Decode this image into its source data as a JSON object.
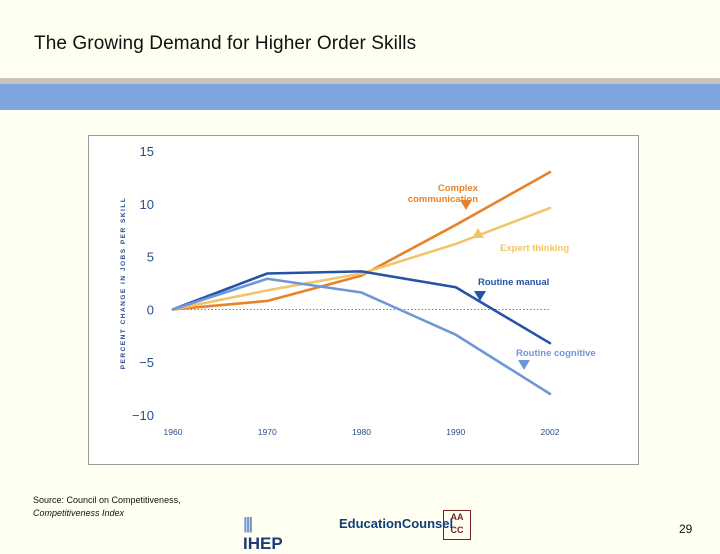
{
  "slide": {
    "title": "The Growing Demand for Higher Order Skills",
    "source_line1": "Source: Council on Competitiveness,",
    "source_line2": "Competitiveness Index",
    "page_number": "29",
    "logos": {
      "ihep": "IHEP",
      "education_counsel": "EducationCounsel",
      "aacc_mark": "AA CC"
    }
  },
  "colors": {
    "background": "#fffff2",
    "rule_gray": "#c9c6b8",
    "rule_blue": "#7da6e0",
    "complex_communication": "#e8822a",
    "expert_thinking": "#f3c56b",
    "routine_manual": "#2553a8",
    "routine_cognitive": "#6f97d8",
    "axis_text": "#2a4e8c"
  },
  "chart_data": {
    "type": "line",
    "title": "",
    "xlabel": "",
    "ylabel": "PERCENT CHANGE IN JOBS PER SKILL",
    "x": [
      "1960",
      "1970",
      "1980",
      "1990",
      "2002"
    ],
    "ylim": [
      -10,
      15
    ],
    "yticks": [
      "15",
      "10",
      "5",
      "0",
      "−5",
      "−10"
    ],
    "series": [
      {
        "name": "Complex communication",
        "label_lines": [
          "Complex",
          "communication"
        ],
        "values": [
          0,
          0.8,
          3.2,
          8,
          13
        ]
      },
      {
        "name": "Expert thinking",
        "label_lines": [
          "Expert thinking"
        ],
        "values": [
          0,
          1.8,
          3.4,
          6.2,
          9.6
        ]
      },
      {
        "name": "Routine manual",
        "label_lines": [
          "Routine manual"
        ],
        "values": [
          0,
          3.4,
          3.6,
          2.1,
          -3.2
        ]
      },
      {
        "name": "Routine cognitive",
        "label_lines": [
          "Routine cognitive"
        ],
        "values": [
          0,
          2.9,
          1.6,
          -2.4,
          -8
        ]
      }
    ]
  }
}
